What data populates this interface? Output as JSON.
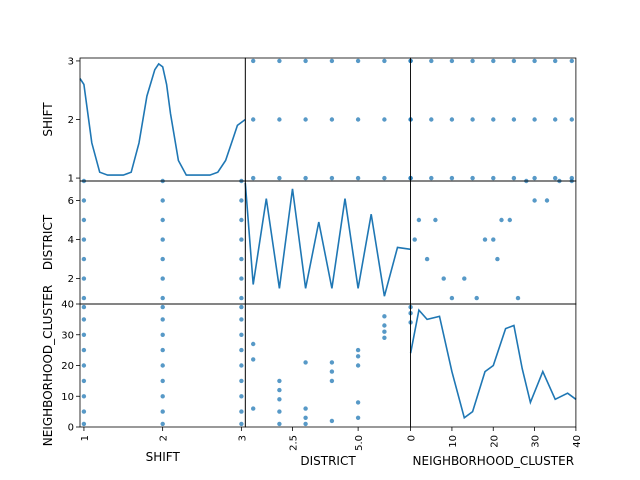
{
  "chart_data": {
    "type": "scatter_matrix",
    "variables": [
      "SHIFT",
      "DISTRICT",
      "NEIGHBORHOOD_CLUSTER"
    ],
    "color": "#1f77b4",
    "diagonal": "kde",
    "ranges": {
      "SHIFT": [
        0.95,
        3.05
      ],
      "DISTRICT": [
        0.7,
        7.0
      ],
      "NEIGHBORHOOD_CLUSTER": [
        0,
        40
      ]
    },
    "ticks": {
      "SHIFT": [
        1,
        2,
        3
      ],
      "DISTRICT": [
        2,
        4,
        6
      ],
      "NEIGHBORHOOD_CLUSTER": [
        0,
        10,
        20,
        30,
        40
      ]
    },
    "ticks_bottom": {
      "SHIFT": [
        1,
        2,
        3
      ],
      "DISTRICT": [
        2.5,
        5.0
      ],
      "NEIGHBORHOOD_CLUSTER": [
        0,
        10,
        20,
        30,
        40
      ]
    },
    "tick_labels_bottom": {
      "SHIFT": [
        "1",
        "2",
        "3"
      ],
      "DISTRICT": [
        "2.5",
        "5.0"
      ],
      "NEIGHBORHOOD_CLUSTER": [
        "0",
        "10",
        "20",
        "30",
        "40"
      ]
    },
    "tick_labels_left": {
      "SHIFT": [
        "1",
        "2",
        "3"
      ],
      "DISTRICT": [
        "2",
        "4",
        "6"
      ],
      "NEIGHBORHOOD_CLUSTER": [
        "0",
        "10",
        "20",
        "30",
        "40"
      ]
    },
    "kde": {
      "SHIFT": {
        "x": [
          0.95,
          1.0,
          1.1,
          1.2,
          1.3,
          1.4,
          1.5,
          1.6,
          1.7,
          1.8,
          1.9,
          1.95,
          2.0,
          2.05,
          2.1,
          2.2,
          2.3,
          2.4,
          2.5,
          2.6,
          2.7,
          2.8,
          2.9,
          2.95,
          3.05
        ],
        "y": [
          2.7,
          2.6,
          1.6,
          1.1,
          1.05,
          1.05,
          1.05,
          1.1,
          1.6,
          2.4,
          2.85,
          2.95,
          2.9,
          2.6,
          2.1,
          1.3,
          1.05,
          1.05,
          1.05,
          1.05,
          1.1,
          1.3,
          1.7,
          1.9,
          2.0
        ]
      },
      "DISTRICT": {
        "x": [
          0.7,
          1.0,
          1.5,
          2.0,
          2.5,
          3.0,
          3.5,
          4.0,
          4.5,
          5.0,
          5.5,
          6.0,
          6.5,
          7.0
        ],
        "y": [
          6.9,
          1.7,
          6.1,
          1.5,
          6.6,
          1.5,
          4.9,
          1.5,
          6.1,
          1.5,
          5.3,
          1.1,
          3.6,
          3.5
        ]
      },
      "NEIGHBORHOOD_CLUSTER": {
        "x": [
          0,
          2,
          4,
          7,
          10,
          13,
          15,
          18,
          20,
          23,
          25,
          27,
          29,
          32,
          35,
          38,
          40
        ],
        "y": [
          24,
          38,
          35,
          36,
          18,
          3,
          5,
          18,
          20,
          32,
          33,
          19,
          8,
          18,
          9,
          11,
          9
        ]
      }
    },
    "points": {
      "SHIFT__DISTRICT": {
        "x": [
          1,
          1,
          1,
          1,
          1,
          1,
          1,
          2,
          2,
          2,
          2,
          2,
          2,
          2,
          3,
          3,
          3,
          3,
          3,
          3,
          3
        ],
        "y": [
          1,
          2,
          3,
          4,
          5,
          6,
          7,
          1,
          2,
          3,
          4,
          5,
          6,
          7,
          1,
          2,
          3,
          4,
          5,
          6,
          7
        ]
      },
      "SHIFT__NEIGHBORHOOD_CLUSTER": {
        "x": [
          1,
          1,
          1,
          1,
          1,
          1,
          1,
          1,
          1,
          2,
          2,
          2,
          2,
          2,
          2,
          2,
          2,
          2,
          3,
          3,
          3,
          3,
          3,
          3,
          3,
          3,
          3
        ],
        "y": [
          1,
          5,
          10,
          15,
          20,
          25,
          30,
          35,
          39,
          1,
          5,
          10,
          15,
          20,
          25,
          30,
          35,
          39,
          1,
          5,
          10,
          15,
          20,
          25,
          30,
          35,
          39
        ]
      },
      "DISTRICT__SHIFT": {
        "x": [
          1,
          2,
          3,
          4,
          5,
          6,
          7,
          1,
          2,
          3,
          4,
          5,
          6,
          7,
          1,
          2,
          3,
          4,
          5,
          6,
          7
        ],
        "y": [
          1,
          1,
          1,
          1,
          1,
          1,
          1,
          2,
          2,
          2,
          2,
          2,
          2,
          2,
          3,
          3,
          3,
          3,
          3,
          3,
          3
        ]
      },
      "DISTRICT__NEIGHBORHOOD_CLUSTER": {
        "x": [
          1,
          1,
          1,
          2,
          2,
          2,
          2,
          2,
          3,
          3,
          3,
          3,
          4,
          4,
          4,
          4,
          5,
          5,
          5,
          5,
          5,
          6,
          6,
          6,
          6,
          7,
          7,
          7
        ],
        "y": [
          6,
          22,
          27,
          1,
          5,
          9,
          12,
          15,
          1,
          3,
          6,
          21,
          2,
          15,
          18,
          21,
          3,
          8,
          20,
          23,
          25,
          29,
          31,
          33,
          36,
          34,
          37,
          39
        ]
      },
      "NEIGHBORHOOD_CLUSTER__SHIFT": {
        "x": [
          0,
          5,
          10,
          15,
          20,
          25,
          30,
          35,
          39,
          0,
          5,
          10,
          15,
          20,
          25,
          30,
          35,
          39,
          0,
          5,
          10,
          15,
          20,
          25,
          30,
          35,
          39
        ],
        "y": [
          1,
          1,
          1,
          1,
          1,
          1,
          1,
          1,
          1,
          2,
          2,
          2,
          2,
          2,
          2,
          2,
          2,
          2,
          3,
          3,
          3,
          3,
          3,
          3,
          3,
          3,
          3
        ]
      },
      "NEIGHBORHOOD_CLUSTER__DISTRICT": {
        "x": [
          1,
          2,
          4,
          6,
          8,
          10,
          13,
          16,
          18,
          20,
          21,
          22,
          24,
          26,
          28,
          30,
          33,
          36,
          39
        ],
        "y": [
          4,
          5,
          3,
          5,
          2,
          1,
          2,
          1,
          4,
          4,
          3,
          5,
          5,
          1,
          7,
          6,
          6,
          7,
          7
        ]
      },
      "NEIGHBORHOOD_CLUSTER__NEIGHBORHOOD_CLUSTER": {
        "x": [],
        "y": []
      }
    }
  }
}
